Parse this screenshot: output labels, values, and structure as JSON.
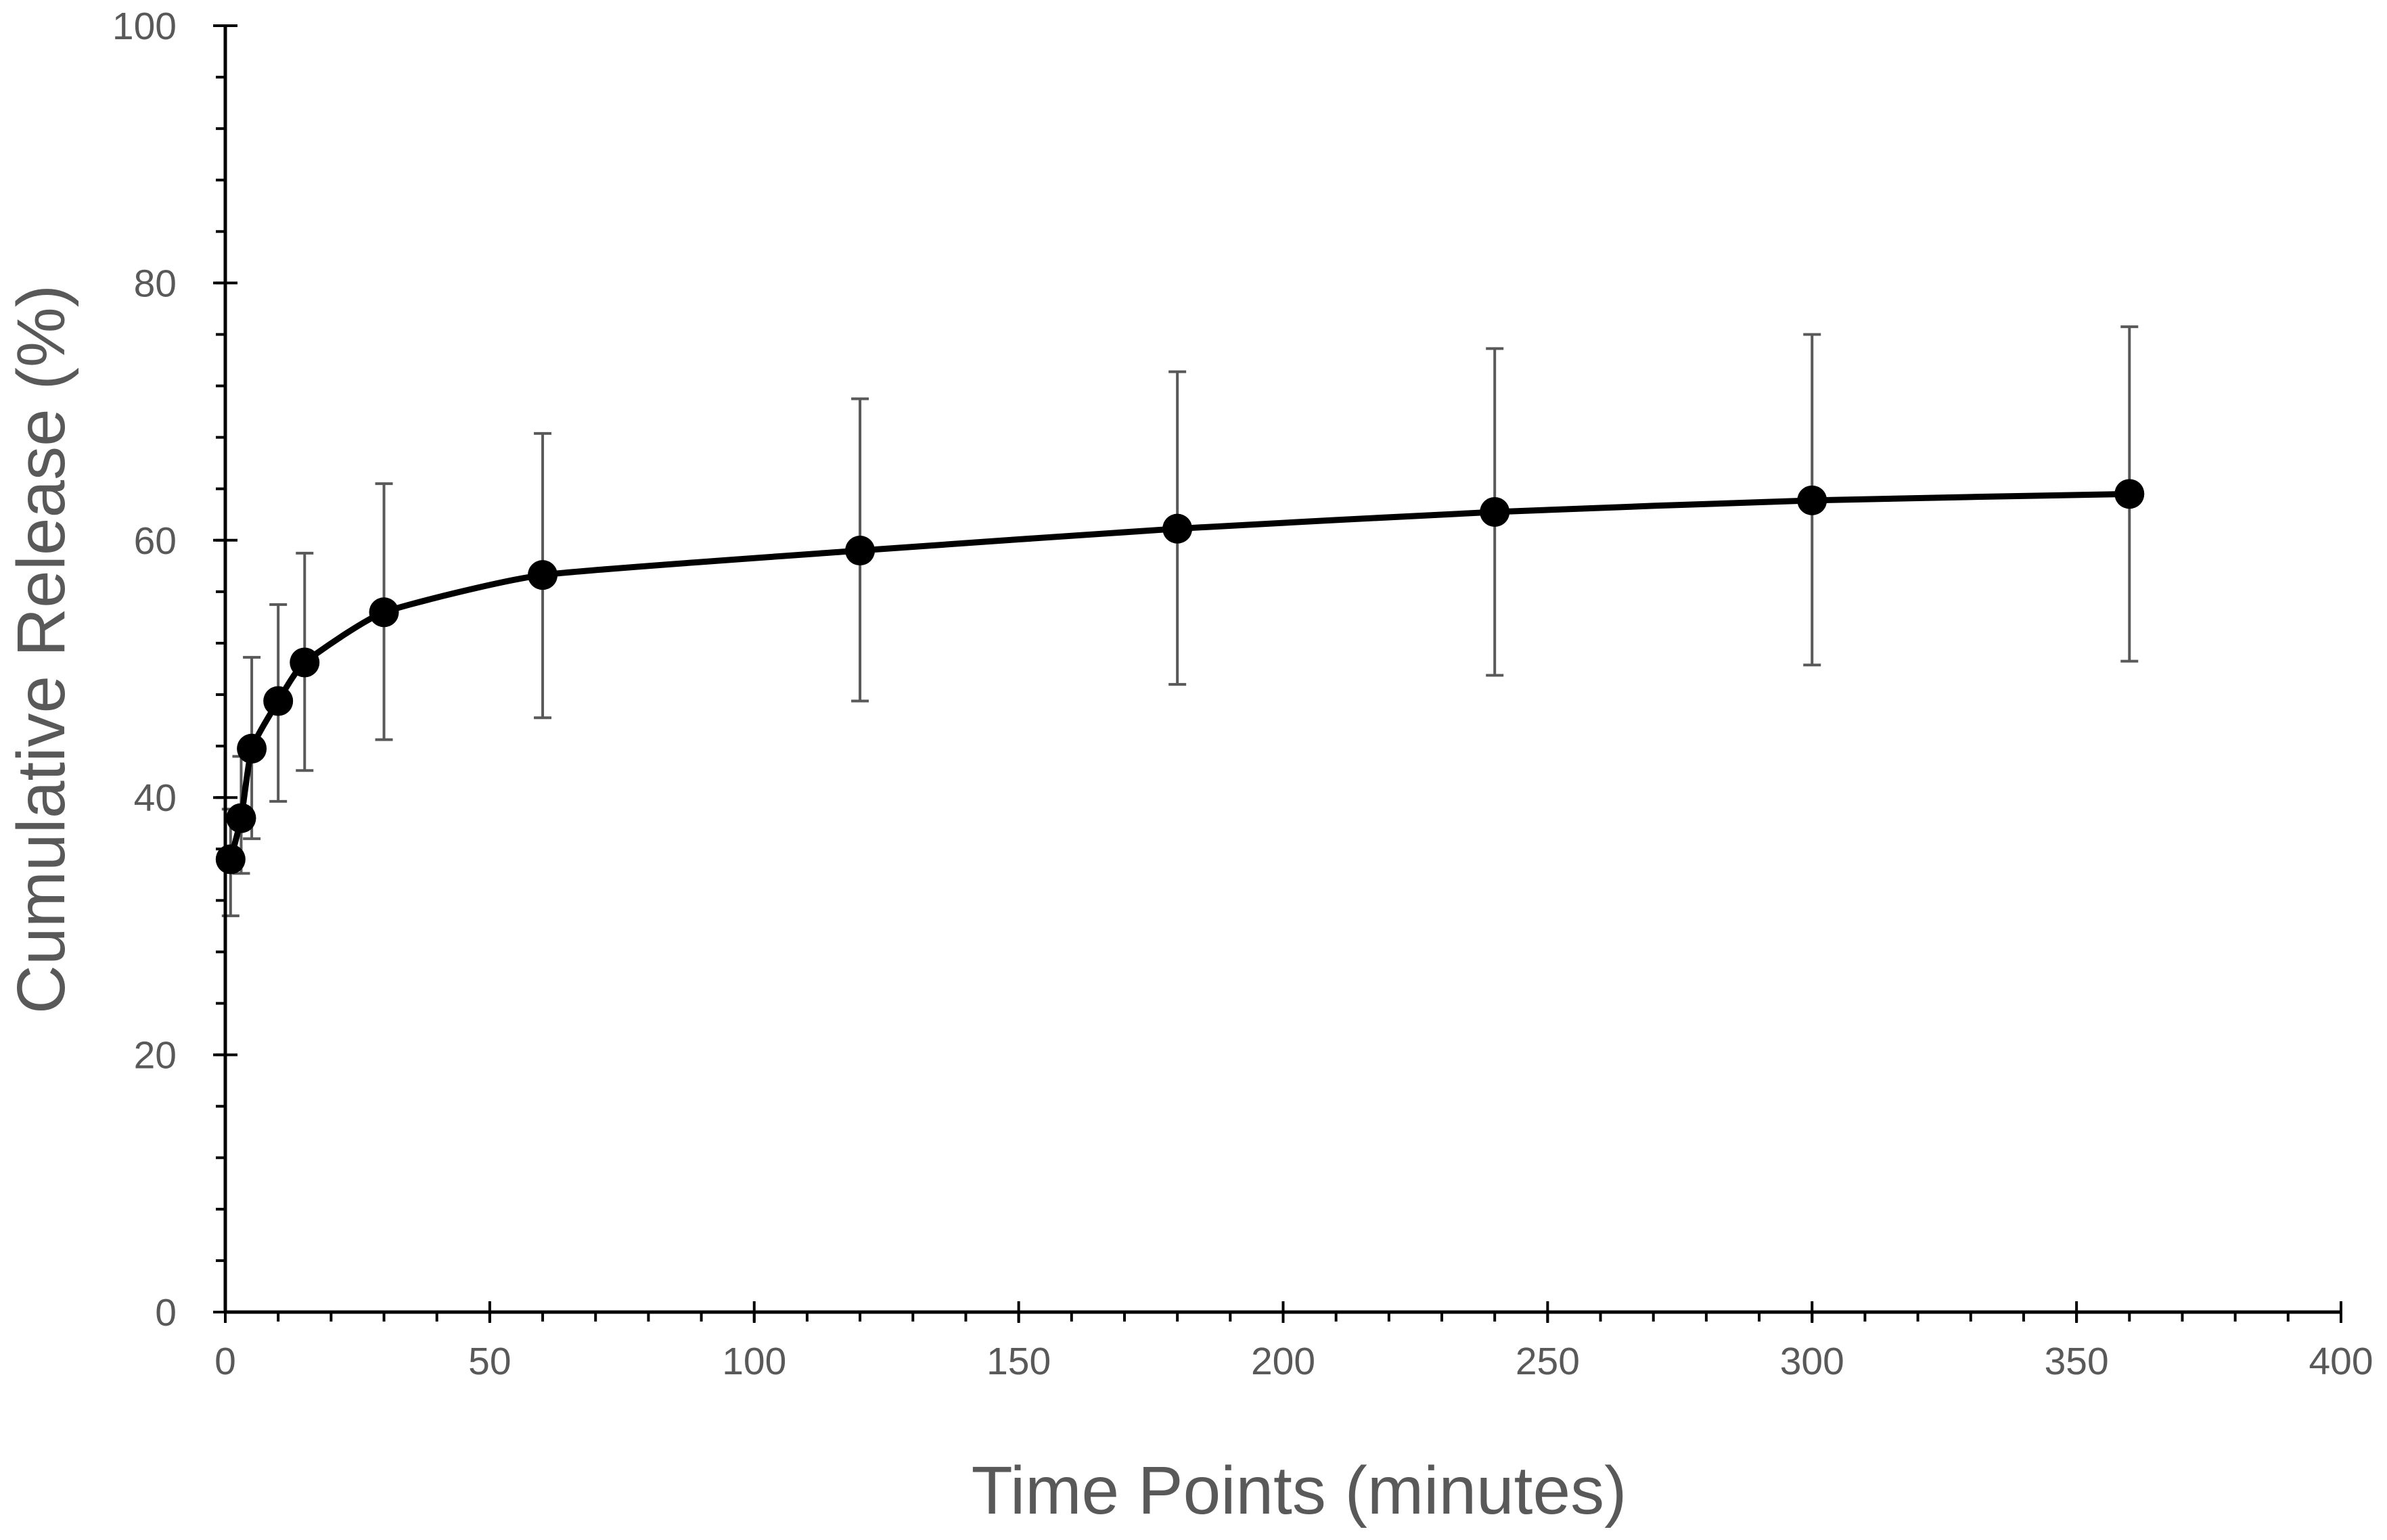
{
  "chart_data": {
    "type": "line",
    "title": "",
    "xlabel": "Time Points (minutes)",
    "ylabel": "Cumulative Release (%)",
    "xlim": [
      0,
      400
    ],
    "ylim": [
      0,
      100
    ],
    "x_ticks": [
      "0",
      "50",
      "100",
      "150",
      "200",
      "250",
      "300",
      "350",
      "400"
    ],
    "y_ticks": [
      "0",
      "20",
      "40",
      "60",
      "80",
      "100"
    ],
    "x_tick_values": [
      0,
      50,
      100,
      150,
      200,
      250,
      300,
      350,
      400
    ],
    "y_tick_values": [
      0,
      20,
      40,
      60,
      80,
      100
    ],
    "x_minor_step": 10,
    "y_minor_step": 4,
    "grid": false,
    "legend": "none",
    "line_smoothed": true,
    "colors": {
      "line": "#000000",
      "marker": "#000000",
      "error_bar": "#595959",
      "axis": "#000000",
      "text": "#595959"
    },
    "series": [
      {
        "x": [
          1,
          3,
          5,
          10,
          15,
          30,
          60,
          120,
          180,
          240,
          300,
          360
        ],
        "y": [
          35.2,
          38.4,
          43.8,
          47.5,
          50.5,
          54.4,
          57.3,
          59.2,
          60.9,
          62.2,
          63.1,
          63.6
        ],
        "err_low": [
          30.8,
          34.1,
          36.8,
          39.7,
          42.1,
          44.5,
          46.2,
          47.5,
          48.8,
          49.5,
          50.3,
          50.6
        ],
        "err_high": [
          39.1,
          43.2,
          50.9,
          55.0,
          59.0,
          64.4,
          68.3,
          71.0,
          73.1,
          74.9,
          76.0,
          76.6
        ]
      }
    ]
  }
}
